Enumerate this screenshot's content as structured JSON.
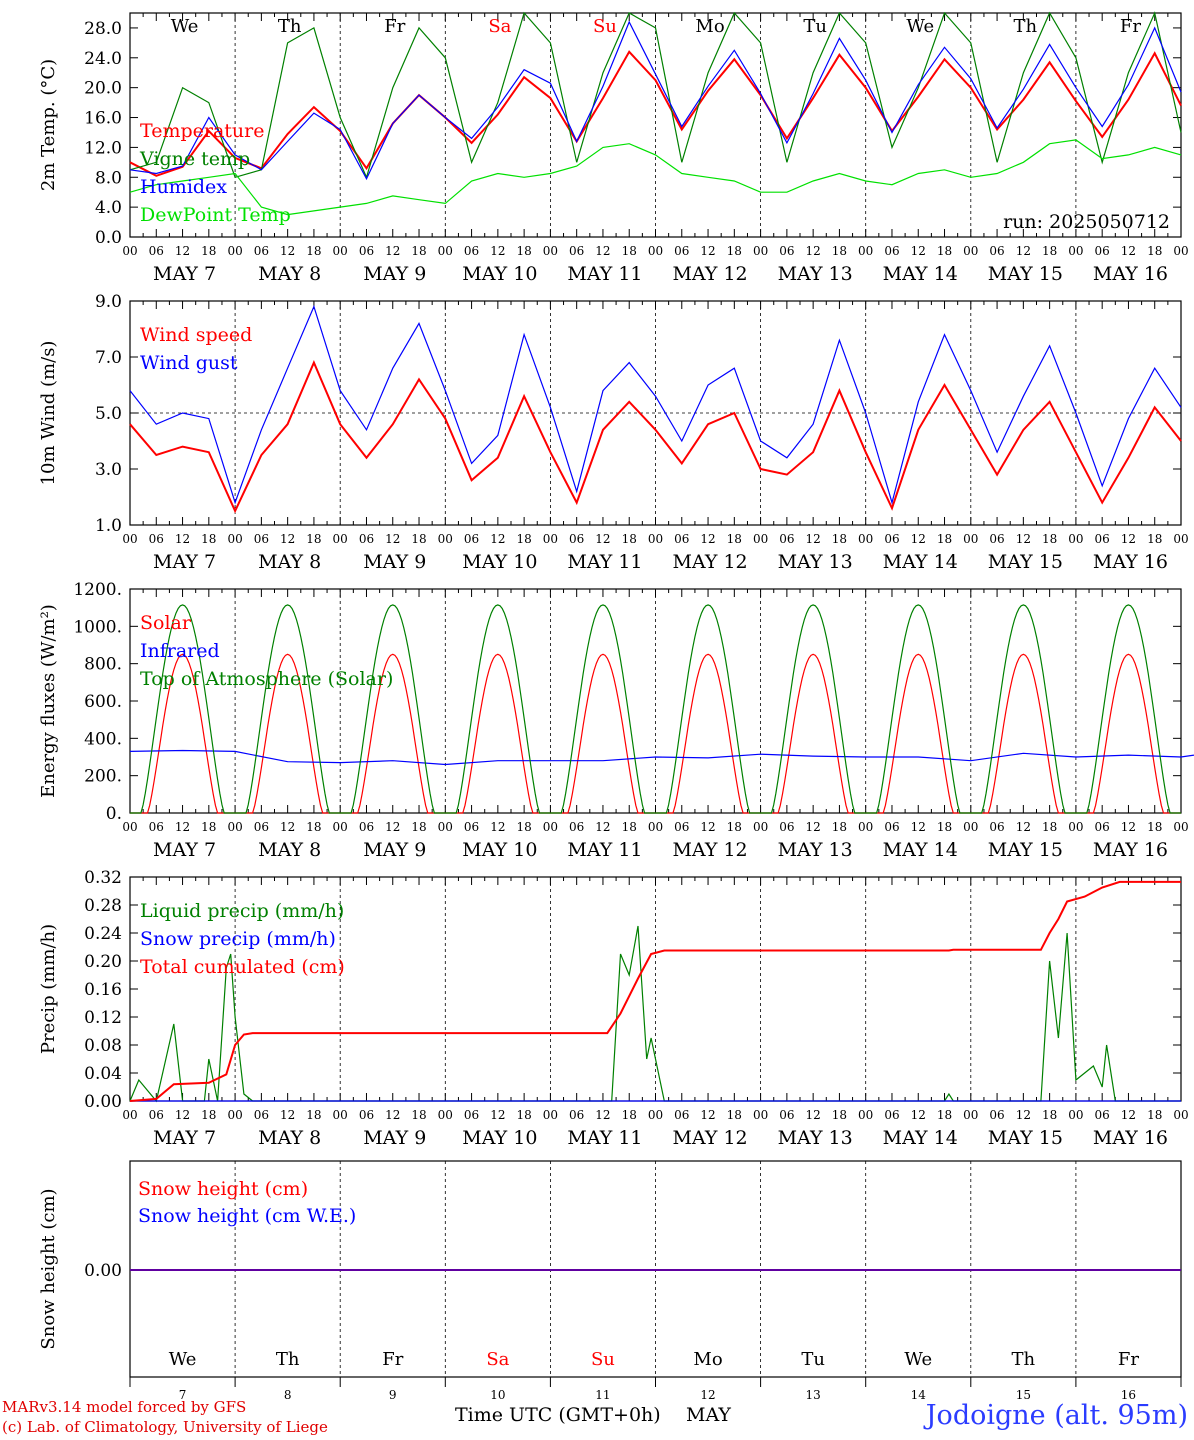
{
  "run_label": "run: 2025050712",
  "footer": {
    "credit_line1": "MARv3.14 model forced by GFS",
    "credit_line2": "(c) Lab. of Climatology, University of Liege",
    "station": "Jodoigne (alt. 95m)",
    "x_title": "Time UTC (GMT+0h)",
    "x_month": "MAY"
  },
  "colors": {
    "temperature": "#ff0000",
    "vigne": "#008000",
    "humidex": "#0000ff",
    "dewpoint": "#00e000",
    "weekend": "#ff0000",
    "station": "#2b3cff"
  },
  "days": [
    {
      "abbr": "We",
      "date": "MAY 7",
      "num": "7",
      "weekend": false
    },
    {
      "abbr": "Th",
      "date": "MAY 8",
      "num": "8",
      "weekend": false
    },
    {
      "abbr": "Fr",
      "date": "MAY 9",
      "num": "9",
      "weekend": false
    },
    {
      "abbr": "Sa",
      "date": "MAY 10",
      "num": "10",
      "weekend": true
    },
    {
      "abbr": "Su",
      "date": "MAY 11",
      "num": "11",
      "weekend": true
    },
    {
      "abbr": "Mo",
      "date": "MAY 12",
      "num": "12",
      "weekend": false
    },
    {
      "abbr": "Tu",
      "date": "MAY 13",
      "num": "13",
      "weekend": false
    },
    {
      "abbr": "We",
      "date": "MAY 14",
      "num": "14",
      "weekend": false
    },
    {
      "abbr": "Th",
      "date": "MAY 15",
      "num": "15",
      "weekend": false
    },
    {
      "abbr": "Fr",
      "date": "MAY 16",
      "num": "16",
      "weekend": false
    }
  ],
  "hour_ticks": [
    "00",
    "06",
    "12",
    "18"
  ],
  "chart_data": [
    {
      "type": "line",
      "ylabel": "2m Temp. (°C)",
      "ylim": [
        0,
        30
      ],
      "yticks": [
        "0.0",
        "4.0",
        "8.0",
        "12.0",
        "16.0",
        "20.0",
        "24.0",
        "28.0"
      ],
      "ytick_values": [
        0,
        4,
        8,
        12,
        16,
        20,
        24,
        28
      ],
      "x_hours_since_may7_00utc": [
        0,
        240
      ],
      "series": [
        {
          "name": "Temperature",
          "color": "#ff0000",
          "step_h": 6,
          "values": [
            10.0,
            8.2,
            9.4,
            14.2,
            10.6,
            9.2,
            13.8,
            17.4,
            14.2,
            9.2,
            15.2,
            19.0,
            16.0,
            12.6,
            16.4,
            21.4,
            18.6,
            12.8,
            18.6,
            24.8,
            21.0,
            14.4,
            19.6,
            23.8,
            19.0,
            13.2,
            18.6,
            24.4,
            20.0,
            14.2,
            18.8,
            23.8,
            20.0,
            14.4,
            18.4,
            23.4,
            18.2,
            13.4,
            18.4,
            24.6,
            17.6
          ]
        },
        {
          "name": "Vigne temp",
          "color": "#008000",
          "step_h": 6,
          "values": [
            9.0,
            10.0,
            20.0,
            18.0,
            8.0,
            9.0,
            26.0,
            28.0,
            16.0,
            8.0,
            20.0,
            28.0,
            24.0,
            10.0,
            18.0,
            30.0,
            26.0,
            10.0,
            22.0,
            30.0,
            28.0,
            10.0,
            22.0,
            30.0,
            26.0,
            10.0,
            22.0,
            30.0,
            26.0,
            12.0,
            20.0,
            30.0,
            26.0,
            10.0,
            22.0,
            30.0,
            24.0,
            10.0,
            22.0,
            30.0,
            14.0
          ]
        },
        {
          "name": "Humidex",
          "color": "#0000ff",
          "step_h": 6,
          "values": [
            9.0,
            8.5,
            9.5,
            16.0,
            11.0,
            9.0,
            12.8,
            16.6,
            14.4,
            7.8,
            15.2,
            19.0,
            16.0,
            13.2,
            17.4,
            22.4,
            20.6,
            12.8,
            20.2,
            28.8,
            21.8,
            14.8,
            20.2,
            25.0,
            19.2,
            12.6,
            19.2,
            26.6,
            21.0,
            14.0,
            20.4,
            25.4,
            21.2,
            14.6,
            19.8,
            25.8,
            20.0,
            14.8,
            20.4,
            28.0,
            19.4
          ]
        },
        {
          "name": "DewPoint Temp",
          "color": "#00e000",
          "step_h": 6,
          "values": [
            6.0,
            7.0,
            7.5,
            8.0,
            8.5,
            4.0,
            3.0,
            3.5,
            4.0,
            4.5,
            5.5,
            5.0,
            4.5,
            7.5,
            8.5,
            8.0,
            8.5,
            9.5,
            12.0,
            12.5,
            11.0,
            8.5,
            8.0,
            7.5,
            6.0,
            6.0,
            7.5,
            8.5,
            7.5,
            7.0,
            8.5,
            9.0,
            8.0,
            8.5,
            10.0,
            12.5,
            13.0,
            10.5,
            11.0,
            12.0,
            11.0
          ]
        }
      ],
      "annotations": [
        "run: 2025050712"
      ]
    },
    {
      "type": "line",
      "ylabel": "10m Wind (m/s)",
      "ylim": [
        1,
        9
      ],
      "yticks": [
        "1.0",
        "3.0",
        "5.0",
        "7.0",
        "9.0"
      ],
      "ytick_values": [
        1,
        3,
        5,
        7,
        9
      ],
      "reference_line": 5,
      "series": [
        {
          "name": "Wind speed",
          "color": "#ff0000",
          "step_h": 6,
          "values": [
            4.6,
            3.5,
            3.8,
            3.6,
            1.5,
            3.5,
            4.6,
            6.8,
            4.6,
            3.4,
            4.6,
            6.2,
            4.8,
            2.6,
            3.4,
            5.6,
            3.6,
            1.8,
            4.4,
            5.4,
            4.4,
            3.2,
            4.6,
            5.0,
            3.0,
            2.8,
            3.6,
            5.8,
            3.6,
            1.6,
            4.4,
            6.0,
            4.4,
            2.8,
            4.4,
            5.4,
            3.6,
            1.8,
            3.4,
            5.2,
            4.0
          ]
        },
        {
          "name": "Wind gust",
          "color": "#0000ff",
          "step_h": 6,
          "values": [
            5.8,
            4.6,
            5.0,
            4.8,
            1.8,
            4.4,
            6.6,
            8.8,
            5.8,
            4.4,
            6.6,
            8.2,
            5.8,
            3.2,
            4.2,
            7.8,
            5.2,
            2.2,
            5.8,
            6.8,
            5.6,
            4.0,
            6.0,
            6.6,
            4.0,
            3.4,
            4.6,
            7.6,
            5.0,
            1.8,
            5.4,
            7.8,
            5.8,
            3.6,
            5.6,
            7.4,
            5.0,
            2.4,
            4.8,
            6.6,
            5.2
          ]
        }
      ]
    },
    {
      "type": "line",
      "ylabel": "Energy fluxes (W/m²)",
      "ylim": [
        0,
        1200
      ],
      "yticks": [
        "0.",
        "200.",
        "400.",
        "600.",
        "800.",
        "1000.",
        "1200."
      ],
      "ytick_values": [
        0,
        200,
        400,
        600,
        800,
        1000,
        1200
      ],
      "series": [
        {
          "name": "Solar",
          "color": "#ff0000",
          "diurnal": true,
          "peak": 850,
          "day_hours": [
            4,
            20
          ]
        },
        {
          "name": "Infrared",
          "color": "#0000ff",
          "step_h": 12,
          "values": [
            330,
            335,
            330,
            275,
            270,
            280,
            260,
            280,
            280,
            280,
            300,
            295,
            315,
            305,
            300,
            300,
            280,
            320,
            300,
            310,
            300,
            340,
            310
          ]
        },
        {
          "name": "Top of Atmosphere (Solar)",
          "color": "#008000",
          "diurnal": true,
          "peak": 1115,
          "day_hours": [
            2.5,
            21.5
          ]
        }
      ]
    },
    {
      "type": "line",
      "ylabel": "Precip (mm/h)",
      "ylim": [
        0,
        0.32
      ],
      "yticks": [
        "0.00",
        "0.04",
        "0.08",
        "0.12",
        "0.16",
        "0.20",
        "0.24",
        "0.28",
        "0.32"
      ],
      "ytick_values": [
        0,
        0.04,
        0.08,
        0.12,
        0.16,
        0.2,
        0.24,
        0.28,
        0.32
      ],
      "series": [
        {
          "name": "Liquid precip (mm/h)",
          "color": "#008000",
          "points": [
            [
              0,
              0
            ],
            [
              2,
              0.03
            ],
            [
              6,
              0
            ],
            [
              10,
              0.11
            ],
            [
              12,
              0
            ],
            [
              17,
              0
            ],
            [
              18,
              0.06
            ],
            [
              20,
              0
            ],
            [
              22,
              0.19
            ],
            [
              23,
              0.21
            ],
            [
              24,
              0.12
            ],
            [
              26,
              0.01
            ],
            [
              28,
              0
            ],
            [
              110,
              0
            ],
            [
              112,
              0.21
            ],
            [
              114,
              0.18
            ],
            [
              116,
              0.25
            ],
            [
              118,
              0.06
            ],
            [
              119,
              0.09
            ],
            [
              122,
              0
            ],
            [
              186,
              0
            ],
            [
              187,
              0.01
            ],
            [
              188,
              0
            ],
            [
              208,
              0
            ],
            [
              210,
              0.2
            ],
            [
              212,
              0.09
            ],
            [
              214,
              0.24
            ],
            [
              216,
              0.03
            ],
            [
              220,
              0.05
            ],
            [
              222,
              0.02
            ],
            [
              223,
              0.08
            ],
            [
              225,
              0
            ],
            [
              240,
              0
            ]
          ]
        },
        {
          "name": "Snow precip (mm/h)",
          "color": "#0000ff",
          "points": [
            [
              0,
              0
            ],
            [
              240,
              0
            ]
          ]
        },
        {
          "name": "Total cumulated (cm)",
          "color": "#ff0000",
          "points": [
            [
              0,
              0
            ],
            [
              6,
              0.003
            ],
            [
              10,
              0.024
            ],
            [
              18,
              0.026
            ],
            [
              22,
              0.038
            ],
            [
              24,
              0.08
            ],
            [
              26,
              0.095
            ],
            [
              28,
              0.097
            ],
            [
              109,
              0.097
            ],
            [
              112,
              0.125
            ],
            [
              116,
              0.175
            ],
            [
              119,
              0.21
            ],
            [
              122,
              0.215
            ],
            [
              187,
              0.215
            ],
            [
              188,
              0.216
            ],
            [
              208,
              0.216
            ],
            [
              210,
              0.24
            ],
            [
              212,
              0.26
            ],
            [
              214,
              0.285
            ],
            [
              218,
              0.292
            ],
            [
              222,
              0.305
            ],
            [
              226,
              0.313
            ],
            [
              240,
              0.313
            ]
          ]
        }
      ]
    },
    {
      "type": "line",
      "ylabel": "Snow height (cm)",
      "yticks": [
        "0.00"
      ],
      "ytick_values": [
        0
      ],
      "series": [
        {
          "name": "Snow height (cm)",
          "color": "#ff0000",
          "points": [
            [
              0,
              0
            ],
            [
              240,
              0
            ]
          ]
        },
        {
          "name": "Snow height (cm W.E.)",
          "color": "#0000ff",
          "points": [
            [
              0,
              0
            ],
            [
              240,
              0
            ]
          ]
        }
      ]
    }
  ]
}
